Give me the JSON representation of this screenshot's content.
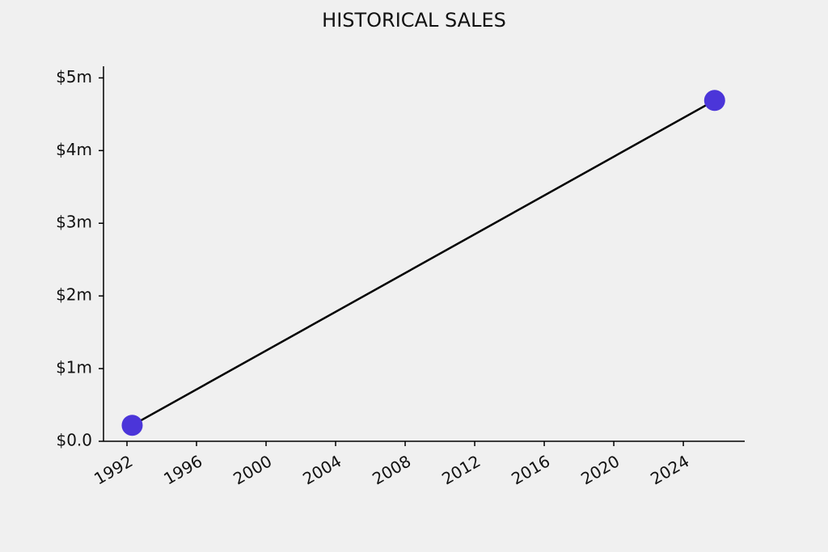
{
  "chart_data": {
    "type": "line",
    "title": "HISTORICAL SALES",
    "x": [
      1992.3,
      2025.8
    ],
    "values": [
      220000,
      4690000
    ],
    "line_color": "#000000",
    "marker_color": "#4b35d9",
    "xlim": [
      1990.65,
      2027.53
    ],
    "xticks": [
      1992,
      1996,
      2000,
      2004,
      2008,
      2012,
      2016,
      2020,
      2024
    ],
    "ylim": [
      0,
      5160000
    ],
    "yticks": [
      {
        "value": 0,
        "label": "$0.0"
      },
      {
        "value": 1000000,
        "label": "$1m"
      },
      {
        "value": 2000000,
        "label": "$2m"
      },
      {
        "value": 3000000,
        "label": "$3m"
      },
      {
        "value": 4000000,
        "label": "$4m"
      },
      {
        "value": 5000000,
        "label": "$5m"
      }
    ],
    "grid": false
  }
}
